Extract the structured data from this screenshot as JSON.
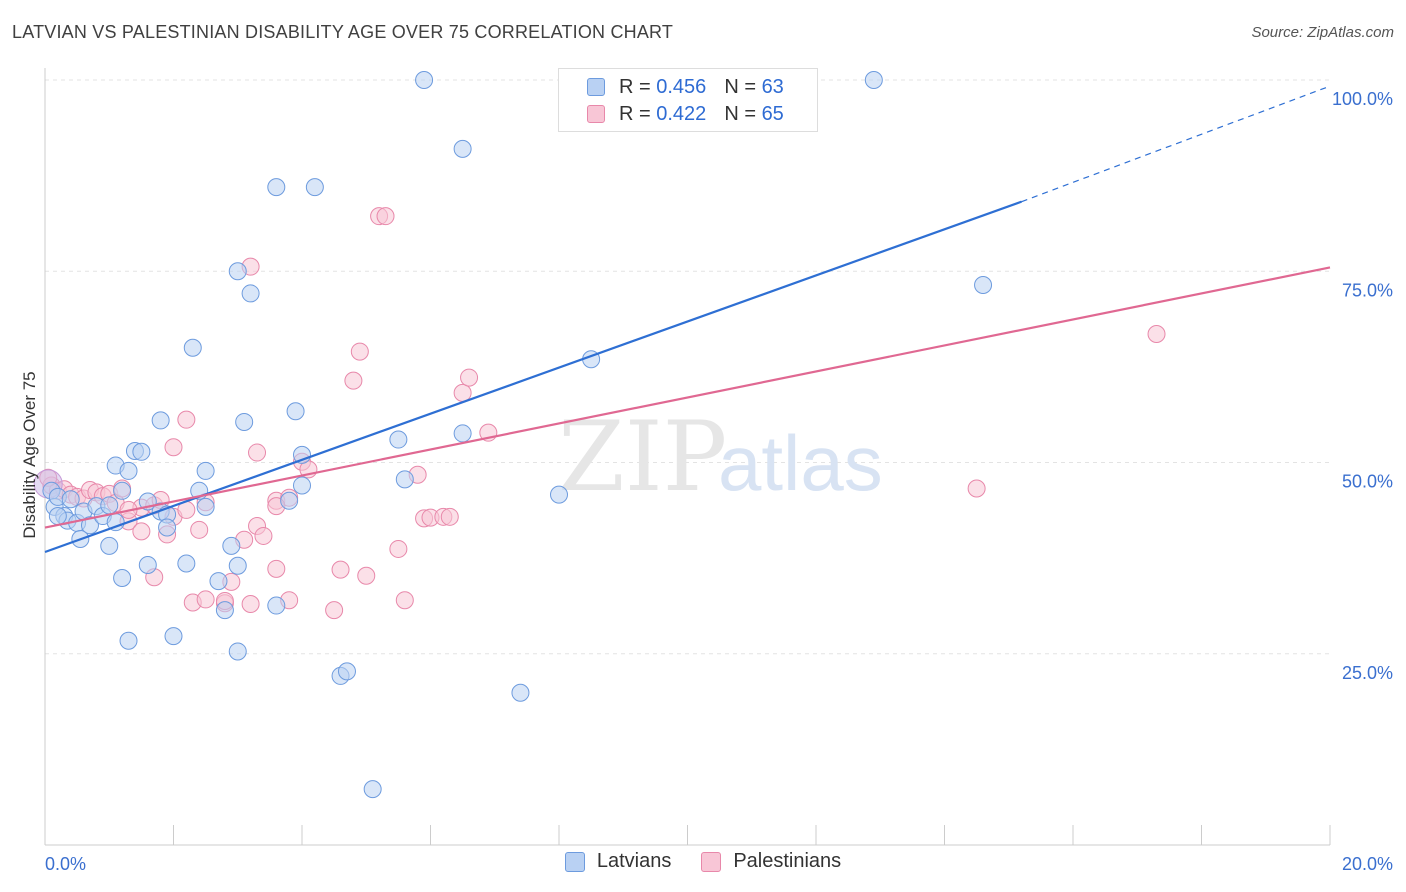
{
  "header": {
    "title": "LATVIAN VS PALESTINIAN DISABILITY AGE OVER 75 CORRELATION CHART",
    "source": "Source: ZipAtlas.com"
  },
  "watermark": {
    "zip": "ZIP",
    "atlas": "atlas"
  },
  "legend": {
    "rows": [
      {
        "r_label": "R =",
        "r_value": "0.456",
        "n_label": "N =",
        "n_value": "63"
      },
      {
        "r_label": "R =",
        "r_value": "0.422",
        "n_label": "N =",
        "n_value": "65"
      }
    ],
    "bottom": [
      "Latvians",
      "Palestinians"
    ]
  },
  "colors": {
    "latvian_fill": "#b9d1f3",
    "latvian_stroke": "#6d9bde",
    "latvian_line": "#2e6fd3",
    "palestinian_fill": "#f8c6d6",
    "palestinian_stroke": "#e888aa",
    "palestinian_line": "#e06892",
    "axis_text": "#3a6fcf",
    "grid": "#e3e3e3"
  },
  "chart_data": {
    "type": "scatter",
    "title": "LATVIAN VS PALESTINIAN DISABILITY AGE OVER 75 CORRELATION CHART",
    "xlabel": "",
    "ylabel": "Disability Age Over 75",
    "xlim": [
      0,
      20
    ],
    "ylim": [
      0,
      100
    ],
    "x_tick_labels": [
      "0.0%",
      "20.0%"
    ],
    "y_tick_labels": [
      "25.0%",
      "50.0%",
      "75.0%",
      "100.0%"
    ],
    "y_ticks": [
      25,
      50,
      75,
      100
    ],
    "grid": true,
    "series": [
      {
        "name": "Latvians",
        "R": 0.456,
        "N": 63,
        "trend": {
          "x0": 0,
          "y0": 38.3,
          "x1": 15.2,
          "y1": 84.1,
          "dash_to_x": 20,
          "dash_to_y": 99.2
        },
        "points": [
          [
            0.1,
            46.3
          ],
          [
            0.15,
            44.2
          ],
          [
            0.2,
            45.5
          ],
          [
            0.3,
            43.0
          ],
          [
            0.35,
            42.4
          ],
          [
            0.4,
            45.2
          ],
          [
            0.5,
            42.1
          ],
          [
            0.6,
            43.6
          ],
          [
            0.7,
            41.8
          ],
          [
            0.8,
            44.3
          ],
          [
            0.9,
            43.0
          ],
          [
            1.0,
            44.4
          ],
          [
            0.55,
            40.0
          ],
          [
            1.0,
            39.1
          ],
          [
            1.1,
            42.2
          ],
          [
            1.1,
            49.6
          ],
          [
            1.3,
            48.9
          ],
          [
            1.2,
            46.3
          ],
          [
            1.4,
            51.5
          ],
          [
            1.5,
            51.4
          ],
          [
            1.6,
            44.9
          ],
          [
            1.8,
            43.6
          ],
          [
            1.9,
            43.2
          ],
          [
            1.9,
            41.5
          ],
          [
            1.8,
            55.5
          ],
          [
            2.5,
            48.9
          ],
          [
            2.4,
            46.3
          ],
          [
            2.5,
            44.2
          ],
          [
            2.3,
            65.0
          ],
          [
            2.2,
            36.8
          ],
          [
            1.6,
            36.6
          ],
          [
            1.2,
            34.9
          ],
          [
            2.7,
            34.5
          ],
          [
            2.8,
            30.7
          ],
          [
            2.9,
            39.1
          ],
          [
            3.0,
            36.5
          ],
          [
            3.1,
            55.3
          ],
          [
            3.0,
            75.0
          ],
          [
            3.2,
            72.1
          ],
          [
            3.6,
            86.0
          ],
          [
            4.2,
            86.0
          ],
          [
            3.8,
            45.0
          ],
          [
            4.0,
            47.0
          ],
          [
            4.0,
            51.0
          ],
          [
            3.9,
            56.7
          ],
          [
            3.6,
            31.3
          ],
          [
            3.0,
            25.3
          ],
          [
            1.3,
            26.7
          ],
          [
            2.0,
            27.3
          ],
          [
            4.6,
            22.1
          ],
          [
            4.7,
            22.7
          ],
          [
            5.1,
            7.3
          ],
          [
            5.5,
            53.0
          ],
          [
            5.6,
            47.8
          ],
          [
            6.5,
            91.0
          ],
          [
            6.5,
            53.8
          ],
          [
            5.9,
            100.0
          ],
          [
            8.0,
            45.8
          ],
          [
            8.5,
            63.5
          ],
          [
            7.4,
            19.9
          ],
          [
            12.9,
            100.0
          ],
          [
            14.6,
            73.2
          ],
          [
            0.2,
            43.0
          ]
        ]
      },
      {
        "name": "Palestinians",
        "R": 0.422,
        "N": 65,
        "trend": {
          "x0": 0,
          "y0": 41.5,
          "x1": 20,
          "y1": 75.5
        },
        "points": [
          [
            0.1,
            47.0
          ],
          [
            0.2,
            46.3
          ],
          [
            0.3,
            46.5
          ],
          [
            0.4,
            45.8
          ],
          [
            0.5,
            45.5
          ],
          [
            0.6,
            45.3
          ],
          [
            0.7,
            46.4
          ],
          [
            0.8,
            46.1
          ],
          [
            0.9,
            45.6
          ],
          [
            1.0,
            45.9
          ],
          [
            1.1,
            44.7
          ],
          [
            1.2,
            46.6
          ],
          [
            1.3,
            42.3
          ],
          [
            1.5,
            44.1
          ],
          [
            1.5,
            41.0
          ],
          [
            1.7,
            44.4
          ],
          [
            1.8,
            45.1
          ],
          [
            1.9,
            40.6
          ],
          [
            2.0,
            42.9
          ],
          [
            2.2,
            43.8
          ],
          [
            2.4,
            41.2
          ],
          [
            2.5,
            44.8
          ],
          [
            2.2,
            55.6
          ],
          [
            2.0,
            52.0
          ],
          [
            1.7,
            35.0
          ],
          [
            2.3,
            31.7
          ],
          [
            2.5,
            32.1
          ],
          [
            2.8,
            31.6
          ],
          [
            2.9,
            34.4
          ],
          [
            3.1,
            39.9
          ],
          [
            3.3,
            41.7
          ],
          [
            3.4,
            40.4
          ],
          [
            3.6,
            45.0
          ],
          [
            3.8,
            45.4
          ],
          [
            3.6,
            36.1
          ],
          [
            3.8,
            32.0
          ],
          [
            4.0,
            50.1
          ],
          [
            4.1,
            49.1
          ],
          [
            3.3,
            51.3
          ],
          [
            3.2,
            75.6
          ],
          [
            4.5,
            30.7
          ],
          [
            4.6,
            36.0
          ],
          [
            4.8,
            60.7
          ],
          [
            4.9,
            64.5
          ],
          [
            5.0,
            35.2
          ],
          [
            5.2,
            82.2
          ],
          [
            5.3,
            82.2
          ],
          [
            5.5,
            38.7
          ],
          [
            5.6,
            32.0
          ],
          [
            5.8,
            48.4
          ],
          [
            5.9,
            42.7
          ],
          [
            6.0,
            42.8
          ],
          [
            6.2,
            42.9
          ],
          [
            6.3,
            42.9
          ],
          [
            6.5,
            59.1
          ],
          [
            6.6,
            61.1
          ],
          [
            6.9,
            53.9
          ],
          [
            3.6,
            44.3
          ],
          [
            2.8,
            31.9
          ],
          [
            3.2,
            31.5
          ],
          [
            0.05,
            48.0
          ],
          [
            1.3,
            43.8
          ],
          [
            9.0,
            100.0
          ],
          [
            14.5,
            46.6
          ],
          [
            17.3,
            66.8
          ]
        ]
      }
    ]
  }
}
